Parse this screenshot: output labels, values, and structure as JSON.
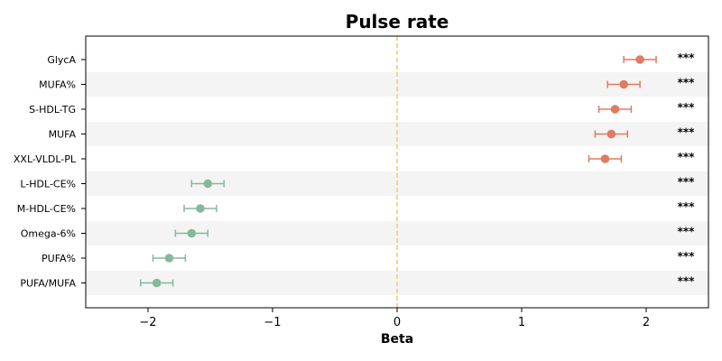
{
  "chart_data": {
    "type": "forest",
    "title": "Pulse rate",
    "xlabel": "Beta",
    "ylabel": "",
    "xlim": [
      -2.5,
      2.5
    ],
    "xticks": [
      -2,
      -1,
      0,
      1,
      2
    ],
    "xtick_labels": [
      "−2",
      "−1",
      "0",
      "1",
      "2"
    ],
    "reference_line": 0,
    "grid": false,
    "row_shading": "alternating",
    "colors": {
      "positive": "#e07b5f",
      "negative": "#86b89c",
      "reference": "#f5c87a",
      "shade": "#f4f4f4"
    },
    "rows": [
      {
        "label": "GlycA",
        "beta": 1.95,
        "ci_low": 1.82,
        "ci_high": 2.08,
        "sig": "***"
      },
      {
        "label": "MUFA%",
        "beta": 1.82,
        "ci_low": 1.69,
        "ci_high": 1.95,
        "sig": "***"
      },
      {
        "label": "S-HDL-TG",
        "beta": 1.75,
        "ci_low": 1.62,
        "ci_high": 1.88,
        "sig": "***"
      },
      {
        "label": "MUFA",
        "beta": 1.72,
        "ci_low": 1.59,
        "ci_high": 1.85,
        "sig": "***"
      },
      {
        "label": "XXL-VLDL-PL",
        "beta": 1.67,
        "ci_low": 1.54,
        "ci_high": 1.8,
        "sig": "***"
      },
      {
        "label": "L-HDL-CE%",
        "beta": -1.52,
        "ci_low": -1.65,
        "ci_high": -1.39,
        "sig": "***"
      },
      {
        "label": "M-HDL-CE%",
        "beta": -1.58,
        "ci_low": -1.71,
        "ci_high": -1.45,
        "sig": "***"
      },
      {
        "label": "Omega-6%",
        "beta": -1.65,
        "ci_low": -1.78,
        "ci_high": -1.52,
        "sig": "***"
      },
      {
        "label": "PUFA%",
        "beta": -1.83,
        "ci_low": -1.96,
        "ci_high": -1.7,
        "sig": "***"
      },
      {
        "label": "PUFA/MUFA",
        "beta": -1.93,
        "ci_low": -2.06,
        "ci_high": -1.8,
        "sig": "***"
      }
    ]
  }
}
